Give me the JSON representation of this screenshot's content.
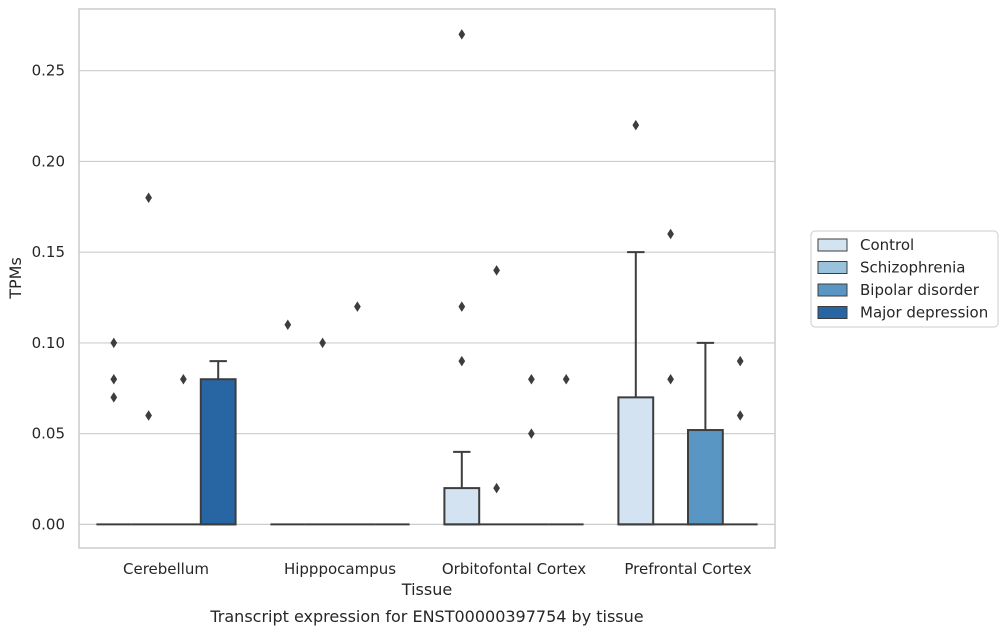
{
  "chart_data": {
    "type": "box",
    "xlabel": "Tissue",
    "ylabel": "TPMs",
    "caption": "Transcript expression for ENST00000397754 by tissue",
    "ylim": [
      -0.013,
      0.284
    ],
    "yticks": [
      "0.00",
      "0.05",
      "0.10",
      "0.15",
      "0.20",
      "0.25"
    ],
    "ytick_values": [
      0,
      0.05,
      0.1,
      0.15,
      0.2,
      0.25
    ],
    "grid": true,
    "legend_position": "right",
    "categories": [
      "Cerebellum",
      "Hipppocampus",
      "Orbitofontal Cortex",
      "Prefrontal Cortex"
    ],
    "series": [
      {
        "name": "Control",
        "color": "#d4e3f2",
        "boxes": [
          {
            "q1": 0,
            "median": 0,
            "q3": 0,
            "whisker_low": 0,
            "whisker_high": 0,
            "outliers": [
              0.1,
              0.08,
              0.07
            ]
          },
          {
            "q1": 0,
            "median": 0,
            "q3": 0,
            "whisker_low": 0,
            "whisker_high": 0,
            "outliers": [
              0.11
            ]
          },
          {
            "q1": 0,
            "median": 0,
            "q3": 0.02,
            "whisker_low": 0,
            "whisker_high": 0.04,
            "outliers": [
              0.27,
              0.12,
              0.09
            ]
          },
          {
            "q1": 0,
            "median": 0,
            "q3": 0.07,
            "whisker_low": 0,
            "whisker_high": 0.15,
            "outliers": [
              0.22
            ]
          }
        ]
      },
      {
        "name": "Schizophrenia",
        "color": "#9ac2dc",
        "boxes": [
          {
            "q1": 0,
            "median": 0,
            "q3": 0,
            "whisker_low": 0,
            "whisker_high": 0,
            "outliers": [
              0.18,
              0.06
            ]
          },
          {
            "q1": 0,
            "median": 0,
            "q3": 0,
            "whisker_low": 0,
            "whisker_high": 0,
            "outliers": [
              0.1
            ]
          },
          {
            "q1": 0,
            "median": 0,
            "q3": 0,
            "whisker_low": 0,
            "whisker_high": 0,
            "outliers": [
              0.14,
              0.02
            ]
          },
          {
            "q1": 0,
            "median": 0,
            "q3": 0,
            "whisker_low": 0,
            "whisker_high": 0,
            "outliers": [
              0.16,
              0.08
            ]
          }
        ]
      },
      {
        "name": "Bipolar disorder",
        "color": "#5a96c3",
        "boxes": [
          {
            "q1": 0,
            "median": 0,
            "q3": 0,
            "whisker_low": 0,
            "whisker_high": 0,
            "outliers": [
              0.08
            ]
          },
          {
            "q1": 0,
            "median": 0,
            "q3": 0,
            "whisker_low": 0,
            "whisker_high": 0,
            "outliers": [
              0.12
            ]
          },
          {
            "q1": 0,
            "median": 0,
            "q3": 0,
            "whisker_low": 0,
            "whisker_high": 0,
            "outliers": [
              0.08,
              0.05
            ]
          },
          {
            "q1": 0,
            "median": 0,
            "q3": 0.052,
            "whisker_low": 0,
            "whisker_high": 0.1,
            "outliers": []
          }
        ]
      },
      {
        "name": "Major depression",
        "color": "#2865a3",
        "boxes": [
          {
            "q1": 0,
            "median": 0,
            "q3": 0.08,
            "whisker_low": 0,
            "whisker_high": 0.09,
            "outliers": []
          },
          {
            "q1": 0,
            "median": 0,
            "q3": 0,
            "whisker_low": 0,
            "whisker_high": 0,
            "outliers": []
          },
          {
            "q1": 0,
            "median": 0,
            "q3": 0,
            "whisker_low": 0,
            "whisker_high": 0,
            "outliers": [
              0.08
            ]
          },
          {
            "q1": 0,
            "median": 0,
            "q3": 0,
            "whisker_low": 0,
            "whisker_high": 0,
            "outliers": [
              0.09,
              0.06
            ]
          }
        ]
      }
    ]
  }
}
